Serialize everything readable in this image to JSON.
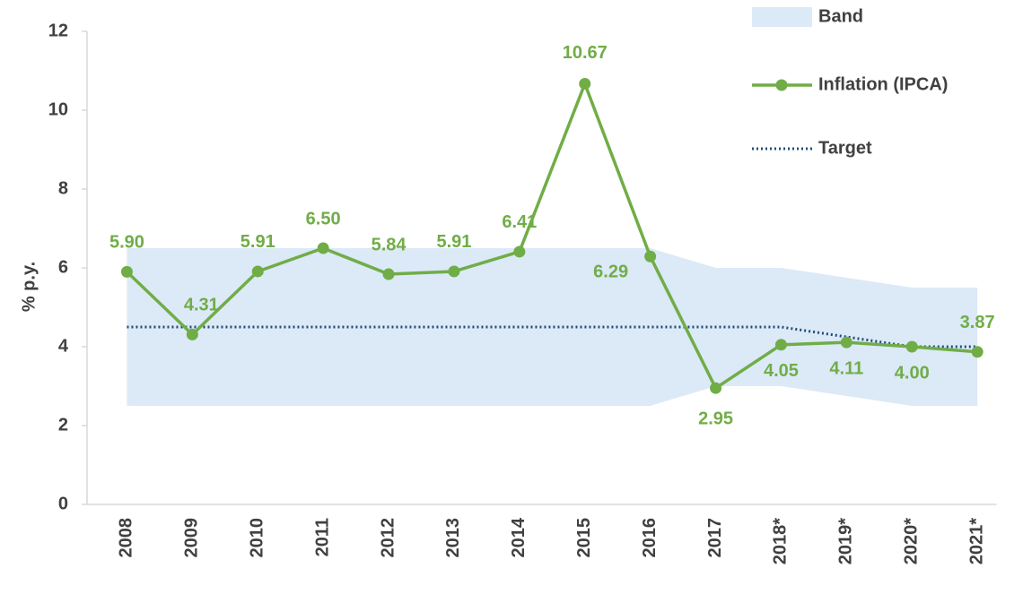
{
  "chart_data": {
    "type": "line",
    "y_label": "% p.y.",
    "categories": [
      "2008",
      "2009",
      "2010",
      "2011",
      "2012",
      "2013",
      "2014",
      "2015",
      "2016",
      "2017",
      "2018*",
      "2019*",
      "2020*",
      "2021*"
    ],
    "series": [
      {
        "name": "Band",
        "color": "#dce9f7",
        "upper": [
          6.5,
          6.5,
          6.5,
          6.5,
          6.5,
          6.5,
          6.5,
          6.5,
          6.5,
          6.0,
          6.0,
          5.75,
          5.5,
          5.5
        ],
        "lower": [
          2.5,
          2.5,
          2.5,
          2.5,
          2.5,
          2.5,
          2.5,
          2.5,
          2.5,
          3.0,
          3.0,
          2.75,
          2.5,
          2.5
        ]
      },
      {
        "name": "Inflation (IPCA)",
        "color": "#70ad47",
        "values": [
          5.9,
          4.31,
          5.91,
          6.5,
          5.84,
          5.91,
          6.41,
          10.67,
          6.29,
          2.95,
          4.05,
          4.11,
          4.0,
          3.87
        ],
        "value_labels": [
          "5.90",
          "4.31",
          "5.91",
          "6.50",
          "5.84",
          "5.91",
          "6.41",
          "10.67",
          "6.29",
          "2.95",
          "4.05",
          "4.11",
          "4.00",
          "3.87"
        ]
      },
      {
        "name": "Target",
        "color": "#1f4e79",
        "values": [
          4.5,
          4.5,
          4.5,
          4.5,
          4.5,
          4.5,
          4.5,
          4.5,
          4.5,
          4.5,
          4.5,
          4.25,
          4.0,
          4.0
        ]
      }
    ],
    "ylim": [
      0,
      12
    ],
    "yticks": [
      0,
      2,
      4,
      6,
      8,
      10,
      12
    ]
  }
}
